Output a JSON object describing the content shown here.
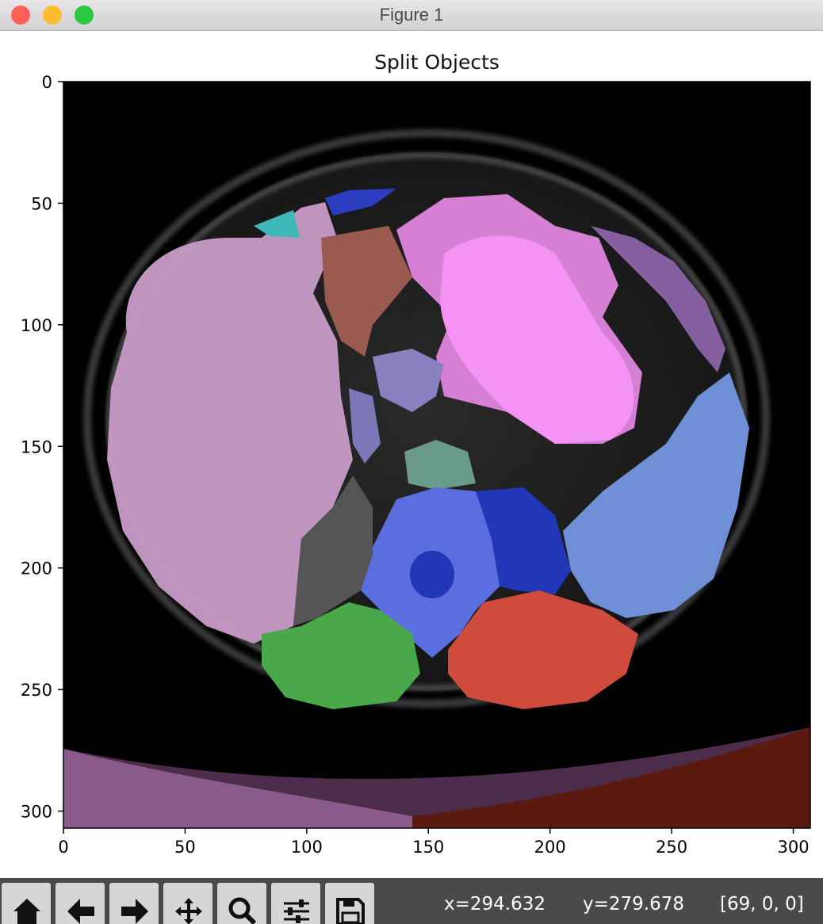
{
  "window": {
    "title": "Figure 1"
  },
  "plot": {
    "title": "Split Objects",
    "x_ticks": [
      "0",
      "50",
      "100",
      "150",
      "200",
      "250",
      "300"
    ],
    "y_ticks": [
      "0",
      "50",
      "100",
      "150",
      "200",
      "250",
      "300"
    ],
    "xlim": [
      0,
      307
    ],
    "ylim": [
      307,
      0
    ]
  },
  "image": {
    "description_kind": "CT axial slice with colored segmentation overlay",
    "segments": [
      {
        "name": "liver",
        "color": "#c89bc8"
      },
      {
        "name": "stomach",
        "color": "#ee90ee"
      },
      {
        "name": "spleen",
        "color": "#6f8fd6"
      },
      {
        "name": "vertebra",
        "color": "#5a6ee0"
      },
      {
        "name": "right-kidney",
        "color": "#49a84a"
      },
      {
        "name": "left-kidney",
        "color": "#cf4c3c"
      },
      {
        "name": "left-psoas",
        "color": "#2236b8"
      },
      {
        "name": "pancreas",
        "color": "#8a82c0"
      },
      {
        "name": "gallbladder",
        "color": "#9b5a50"
      },
      {
        "name": "aorta",
        "color": "#6a9a88"
      }
    ]
  },
  "toolbar": {
    "buttons": [
      {
        "name": "home",
        "icon": "home-icon"
      },
      {
        "name": "back",
        "icon": "arrow-left-icon"
      },
      {
        "name": "forward",
        "icon": "arrow-right-icon"
      },
      {
        "name": "pan",
        "icon": "move-icon"
      },
      {
        "name": "zoom",
        "icon": "magnifier-icon"
      },
      {
        "name": "configure",
        "icon": "sliders-icon"
      },
      {
        "name": "save",
        "icon": "floppy-icon"
      }
    ]
  },
  "status": {
    "x": "x=294.632",
    "y": "y=279.678",
    "value": "[69, 0, 0]"
  }
}
